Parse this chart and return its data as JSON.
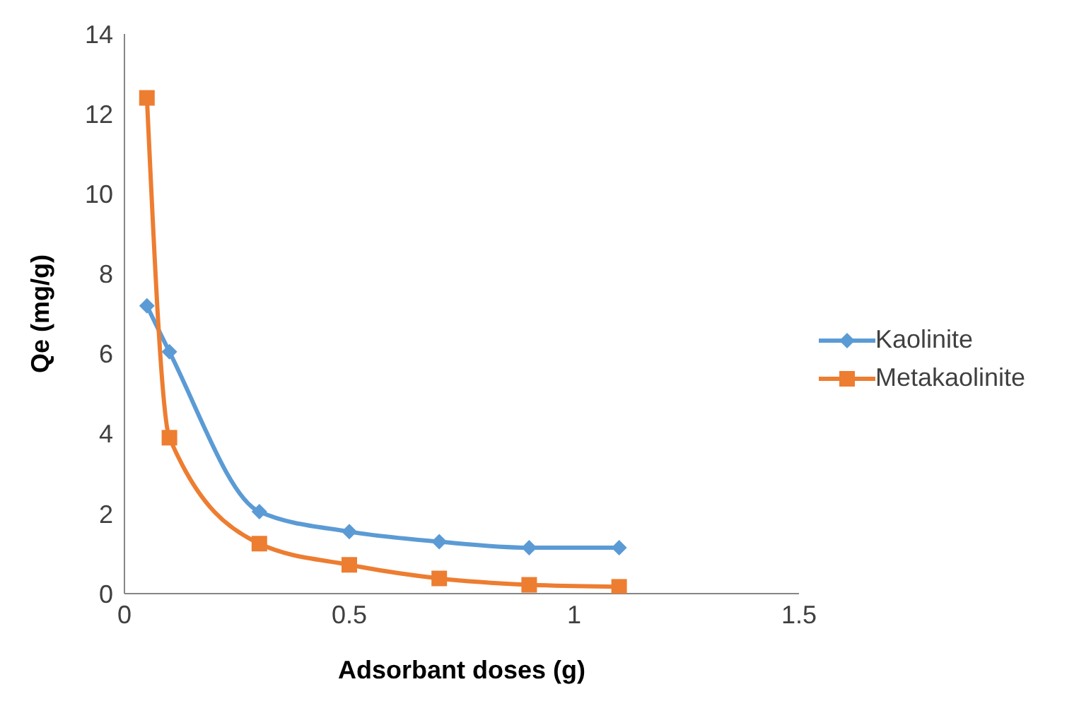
{
  "chart_data": {
    "type": "line",
    "xlabel": "Adsorbant doses (g)",
    "ylabel": "Qe (mg/g)",
    "xlim": [
      0,
      1.5
    ],
    "xticks": [
      0,
      0.5,
      1,
      1.5
    ],
    "ylim": [
      0,
      14
    ],
    "yticks": [
      0,
      2,
      4,
      6,
      8,
      10,
      12,
      14
    ],
    "grid": false,
    "legend": "right",
    "line_style": "solid",
    "series": [
      {
        "name": "Kaolinite",
        "color": "#5b9bd5",
        "marker": "diamond",
        "x": [
          0.05,
          0.1,
          0.3,
          0.5,
          0.7,
          0.9,
          1.1
        ],
        "values": [
          7.2,
          6.05,
          2.05,
          1.55,
          1.3,
          1.15,
          1.15
        ]
      },
      {
        "name": "Metakaolinite",
        "color": "#ed7d31",
        "marker": "square",
        "x": [
          0.05,
          0.1,
          0.3,
          0.5,
          0.7,
          0.9,
          1.1
        ],
        "values": [
          12.4,
          3.9,
          1.25,
          0.72,
          0.38,
          0.22,
          0.17
        ]
      }
    ]
  }
}
